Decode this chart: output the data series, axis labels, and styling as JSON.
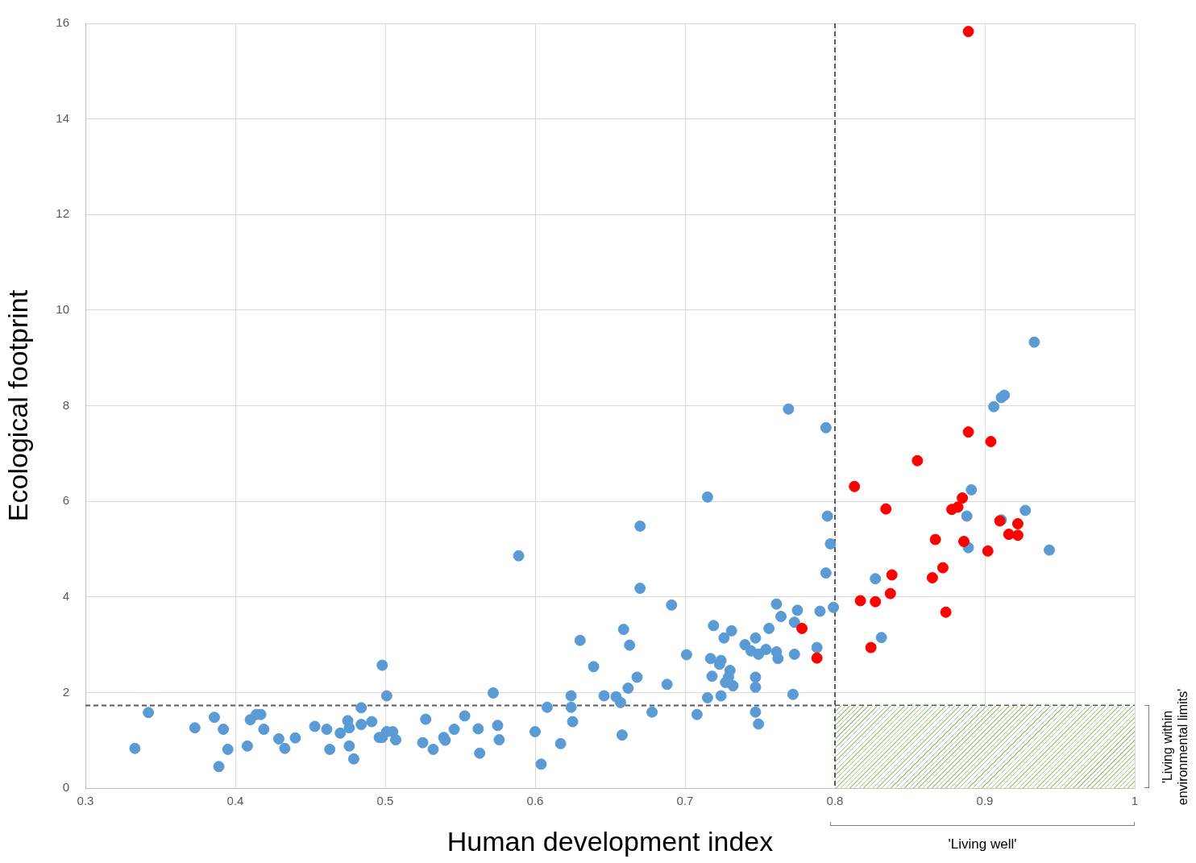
{
  "chart_data": {
    "type": "scatter",
    "xlabel": "Human development index",
    "ylabel": "Ecological footprint",
    "xlim": [
      0.3,
      1
    ],
    "xticks": [
      0.3,
      0.4,
      0.5,
      0.6,
      0.7,
      0.8,
      0.9,
      1
    ],
    "ylim": [
      0,
      16
    ],
    "yticks": [
      0,
      2,
      4,
      6,
      8,
      10,
      12,
      14,
      16
    ],
    "grid": true,
    "legend": false,
    "marker": "circle",
    "series": [
      {
        "color": "#5b9bd5",
        "x": [
          0.333,
          0.342,
          0.373,
          0.386,
          0.389,
          0.392,
          0.395,
          0.408,
          0.41,
          0.414,
          0.417,
          0.419,
          0.429,
          0.433,
          0.44,
          0.453,
          0.461,
          0.463,
          0.47,
          0.475,
          0.476,
          0.476,
          0.479,
          0.484,
          0.484,
          0.491,
          0.496,
          0.498,
          0.498,
          0.501,
          0.501,
          0.505,
          0.507,
          0.525,
          0.527,
          0.532,
          0.539,
          0.54,
          0.546,
          0.553,
          0.562,
          0.563,
          0.572,
          0.575,
          0.576,
          0.589,
          0.6,
          0.604,
          0.608,
          0.617,
          0.624,
          0.624,
          0.625,
          0.63,
          0.639,
          0.646,
          0.654,
          0.657,
          0.658,
          0.659,
          0.662,
          0.663,
          0.668,
          0.67,
          0.67,
          0.678,
          0.688,
          0.691,
          0.701,
          0.708,
          0.715,
          0.715,
          0.717,
          0.718,
          0.719,
          0.723,
          0.724,
          0.724,
          0.726,
          0.727,
          0.729,
          0.731,
          0.73,
          0.732,
          0.74,
          0.744,
          0.747,
          0.747,
          0.747,
          0.747,
          0.749,
          0.749,
          0.754,
          0.756,
          0.761,
          0.761,
          0.762,
          0.764,
          0.769,
          0.773,
          0.772,
          0.773,
          0.775,
          0.788,
          0.79,
          0.794,
          0.794,
          0.795,
          0.797,
          0.799,
          0.827,
          0.831,
          0.888,
          0.891,
          0.889,
          0.906,
          0.911,
          0.913,
          0.911,
          0.927,
          0.933,
          0.943
        ],
        "values": [
          0.83,
          1.58,
          1.26,
          1.48,
          0.45,
          1.23,
          0.81,
          0.88,
          1.43,
          1.54,
          1.54,
          1.23,
          1.03,
          0.83,
          1.05,
          1.29,
          1.23,
          0.81,
          1.15,
          1.41,
          0.88,
          1.26,
          0.61,
          1.33,
          1.68,
          1.39,
          1.06,
          1.06,
          2.57,
          1.93,
          1.18,
          1.18,
          1.01,
          0.95,
          1.44,
          0.81,
          1.06,
          1.0,
          1.23,
          1.51,
          1.24,
          0.73,
          1.99,
          1.31,
          1.01,
          4.86,
          1.18,
          0.5,
          1.69,
          0.93,
          1.93,
          1.69,
          1.39,
          3.09,
          2.54,
          1.93,
          1.91,
          1.79,
          1.11,
          3.32,
          2.09,
          2.99,
          2.32,
          5.48,
          4.18,
          1.59,
          2.17,
          3.83,
          2.79,
          1.54,
          6.09,
          1.89,
          2.71,
          2.34,
          3.4,
          2.59,
          2.67,
          1.93,
          3.14,
          2.21,
          2.32,
          3.29,
          2.46,
          2.14,
          3.0,
          2.87,
          2.32,
          3.14,
          2.11,
          1.59,
          1.34,
          2.8,
          2.9,
          3.34,
          3.85,
          2.85,
          2.71,
          3.59,
          7.93,
          3.47,
          1.96,
          2.8,
          3.72,
          2.94,
          3.7,
          7.54,
          4.5,
          5.69,
          5.11,
          3.78,
          4.38,
          3.15,
          5.69,
          6.24,
          5.03,
          7.98,
          8.17,
          8.22,
          5.61,
          5.81,
          9.33,
          4.98
        ]
      },
      {
        "color": "#ff0000",
        "x": [
          0.778,
          0.788,
          0.813,
          0.817,
          0.824,
          0.827,
          0.834,
          0.837,
          0.838,
          0.855,
          0.865,
          0.867,
          0.872,
          0.874,
          0.878,
          0.882,
          0.885,
          0.886,
          0.889,
          0.889,
          0.902,
          0.904,
          0.91,
          0.916,
          0.922,
          0.922
        ],
        "values": [
          3.34,
          2.72,
          6.31,
          3.92,
          2.94,
          3.9,
          5.84,
          4.07,
          4.46,
          6.85,
          4.4,
          5.2,
          4.61,
          3.68,
          5.83,
          5.88,
          6.07,
          5.16,
          15.83,
          7.45,
          4.96,
          7.25,
          5.59,
          5.31,
          5.29,
          5.53
        ]
      }
    ],
    "ref_lines": [
      {
        "axis": "x",
        "value": 0.8,
        "color": "#595959",
        "line_style": "dashed"
      },
      {
        "axis": "y",
        "value": 1.73,
        "color": "#595959",
        "line_style": "dashed"
      }
    ],
    "annotations": [
      "'Living well'",
      "'Living within environmental limits'"
    ]
  }
}
